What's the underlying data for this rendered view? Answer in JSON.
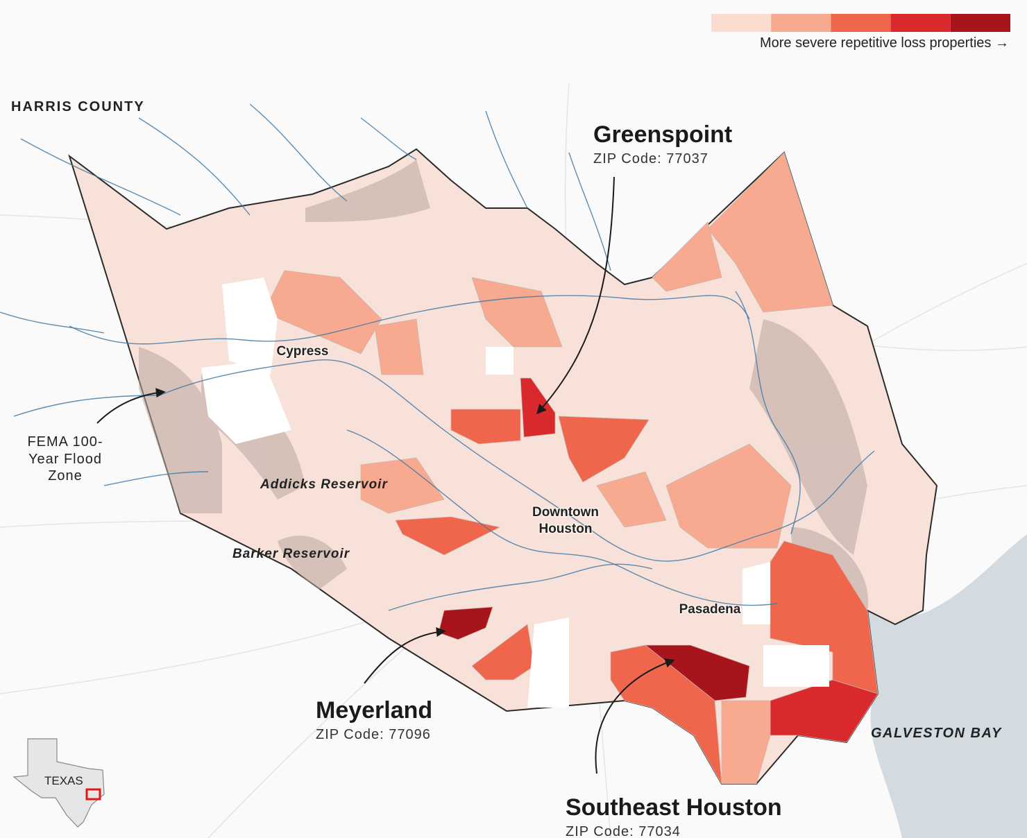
{
  "legend": {
    "colors": [
      "#fbdcd0",
      "#f7aa8f",
      "#f0664c",
      "#d9292c",
      "#a8141c"
    ],
    "label": "More severe repetitive loss properties →"
  },
  "county_label": "HARRIS COUNTY",
  "callouts": [
    {
      "name": "Greenspoint",
      "zip": "ZIP Code: 77037"
    },
    {
      "name": "Meyerland",
      "zip": "ZIP Code: 77096"
    },
    {
      "name": "Southeast Houston",
      "zip": "ZIP Code: 77034"
    }
  ],
  "places": [
    [
      "Cypress"
    ],
    [
      "Downtown",
      "Houston"
    ],
    [
      "Pasadena"
    ]
  ],
  "reservoirs": [
    "Addicks Reservoir",
    "Barker Reservoir"
  ],
  "flood_zone": [
    "FEMA 100-",
    "Year Flood",
    "Zone"
  ],
  "water": "GALVESTON BAY",
  "state": "TEXAS"
}
